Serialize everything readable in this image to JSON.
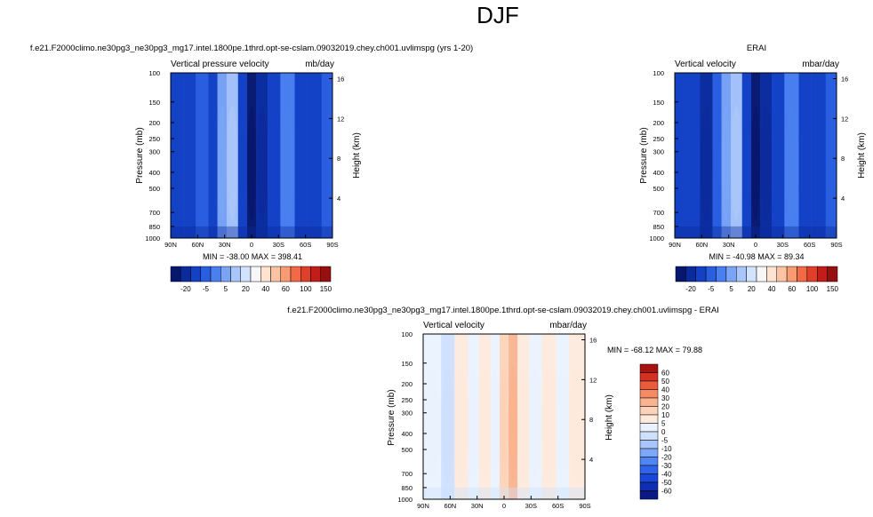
{
  "page_title": "DJF",
  "colors": {
    "blue_scale": [
      "#08176e",
      "#0b2a9c",
      "#1340c4",
      "#2a5ee0",
      "#4a7ff0",
      "#7aa4f6",
      "#a9c6fb",
      "#d2e3fd"
    ],
    "neutral": "#f7f7f7",
    "red_scale": [
      "#fde3d0",
      "#fcc3a3",
      "#f99b72",
      "#f26a45",
      "#e0402a",
      "#c21d18",
      "#961010"
    ],
    "diff_scale": [
      "#0a1a84",
      "#0f2fb0",
      "#1a47d6",
      "#2e63ea",
      "#5085f4",
      "#7ea7f8",
      "#a9c6fb",
      "#cfe0fd",
      "#eaf2fe",
      "#fdeadc",
      "#fcd3b8",
      "#f9b38f",
      "#f58a64",
      "#e95c3c",
      "#d43024",
      "#a8130f"
    ]
  },
  "chart_data": [
    {
      "id": "model",
      "type": "heatmap",
      "title": "f.e21.F2000climo.ne30pg3_ne30pg3_mg17.intel.1800pe.1thrd.opt-se-cslam.09032019.chey.ch001.uvlimspg (yrs 1-20)",
      "left_label": "Vertical pressure velocity",
      "right_label": "mb/day",
      "xlabel": "",
      "ylabel": "Pressure (mb)",
      "y2label": "Height (km)",
      "x_ticks": [
        "90N",
        "60N",
        "30N",
        "0",
        "30S",
        "60S",
        "90S"
      ],
      "y_ticks": [
        "100",
        "150",
        "200",
        "250",
        "300",
        "400",
        "500",
        "700",
        "850",
        "1000"
      ],
      "y2_ticks": [
        "16",
        "12",
        "8",
        "4"
      ],
      "stats": "MIN = -38.00   MAX = 398.41",
      "colorbar_labels": [
        "-20",
        "-5",
        "5",
        "20",
        "40",
        "60",
        "100",
        "150"
      ],
      "level_band_values_latitude_to_class": [
        {
          "lat": 90,
          "class": 2
        },
        {
          "lat": 75,
          "class": 2
        },
        {
          "lat": 62,
          "class": 3
        },
        {
          "lat": 48,
          "class": 2
        },
        {
          "lat": 38,
          "class": 5
        },
        {
          "lat": 28,
          "class": 6
        },
        {
          "lat": 15,
          "class": 2
        },
        {
          "lat": 5,
          "class": 0
        },
        {
          "lat": -5,
          "class": 1
        },
        {
          "lat": -18,
          "class": 2
        },
        {
          "lat": -32,
          "class": 4
        },
        {
          "lat": -48,
          "class": 2
        },
        {
          "lat": -62,
          "class": 2
        },
        {
          "lat": -78,
          "class": 3
        },
        {
          "lat": -90,
          "class": 2
        }
      ]
    },
    {
      "id": "obs",
      "type": "heatmap",
      "title": "ERAI",
      "left_label": "Vertical velocity",
      "right_label": "mbar/day",
      "xlabel": "",
      "ylabel": "Pressure (mb)",
      "y2label": "Height (km)",
      "x_ticks": [
        "90N",
        "60N",
        "30N",
        "0",
        "30S",
        "60S",
        "90S"
      ],
      "y_ticks": [
        "100",
        "150",
        "200",
        "250",
        "300",
        "400",
        "500",
        "700",
        "850",
        "1000"
      ],
      "y2_ticks": [
        "16",
        "12",
        "8",
        "4"
      ],
      "stats": "MIN = -40.98   MAX = 89.34",
      "colorbar_labels": [
        "-20",
        "-5",
        "5",
        "20",
        "40",
        "60",
        "100",
        "150"
      ],
      "level_band_values_latitude_to_class": [
        {
          "lat": 90,
          "class": 2
        },
        {
          "lat": 75,
          "class": 2
        },
        {
          "lat": 62,
          "class": 1
        },
        {
          "lat": 48,
          "class": 3
        },
        {
          "lat": 38,
          "class": 5
        },
        {
          "lat": 28,
          "class": 6
        },
        {
          "lat": 15,
          "class": 2
        },
        {
          "lat": 5,
          "class": 0
        },
        {
          "lat": -5,
          "class": 1
        },
        {
          "lat": -18,
          "class": 2
        },
        {
          "lat": -32,
          "class": 4
        },
        {
          "lat": -48,
          "class": 2
        },
        {
          "lat": -62,
          "class": 2
        },
        {
          "lat": -78,
          "class": 3
        },
        {
          "lat": -90,
          "class": 2
        }
      ]
    },
    {
      "id": "diff",
      "type": "heatmap",
      "title": "f.e21.F2000climo.ne30pg3_ne30pg3_mg17.intel.1800pe.1thrd.opt-se-cslam.09032019.chey.ch001.uvlimspg - ERAI",
      "left_label": "Vertical velocity",
      "right_label": "mbar/day",
      "xlabel": "",
      "ylabel": "Pressure (mb)",
      "y2label": "Height (km)",
      "x_ticks": [
        "90N",
        "60N",
        "30N",
        "0",
        "30S",
        "60S",
        "90S"
      ],
      "y_ticks": [
        "100",
        "150",
        "200",
        "250",
        "300",
        "400",
        "500",
        "700",
        "850",
        "1000"
      ],
      "y2_ticks": [
        "16",
        "12",
        "8",
        "4"
      ],
      "stats": "MIN = -68.12   MAX =  79.88",
      "colorbar_labels": [
        "60",
        "50",
        "40",
        "30",
        "20",
        "10",
        "5",
        "0",
        "-5",
        "-10",
        "-20",
        "-30",
        "-40",
        "-50",
        "-60"
      ],
      "level_band_values_latitude_to_class": [
        {
          "lat": 90,
          "class": 8
        },
        {
          "lat": 70,
          "class": 7
        },
        {
          "lat": 55,
          "class": 9
        },
        {
          "lat": 40,
          "class": 8
        },
        {
          "lat": 28,
          "class": 9
        },
        {
          "lat": 15,
          "class": 8
        },
        {
          "lat": 5,
          "class": 10
        },
        {
          "lat": -5,
          "class": 11
        },
        {
          "lat": -15,
          "class": 9
        },
        {
          "lat": -28,
          "class": 8
        },
        {
          "lat": -42,
          "class": 9
        },
        {
          "lat": -58,
          "class": 8
        },
        {
          "lat": -72,
          "class": 9
        },
        {
          "lat": -90,
          "class": 8
        }
      ]
    }
  ]
}
